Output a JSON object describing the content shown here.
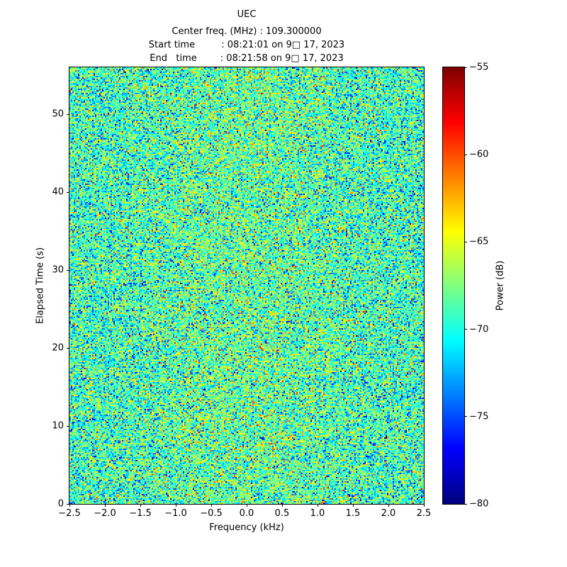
{
  "header": {
    "title": "UEC",
    "center_freq_line": "Center freq. (MHz) : 109.300000",
    "start_time_line": "Start time         : 08:21:01 on 9□ 17, 2023",
    "end_time_line": "End   time        : 08:21:58 on 9□ 17, 2023"
  },
  "chart_data": {
    "type": "heatmap",
    "title": "UEC",
    "annotations": [
      "Center freq. (MHz) : 109.300000",
      "Start time : 08:21:01 on 9□ 17, 2023",
      "End time : 08:21:58 on 9□ 17, 2023"
    ],
    "xlabel": "Frequency (kHz)",
    "ylabel": "Elapsed Time (s)",
    "xlim": [
      -2.5,
      2.5
    ],
    "ylim": [
      0,
      56
    ],
    "xtick_values": [
      -2.5,
      -2.0,
      -1.5,
      -1.0,
      -0.5,
      0.0,
      0.5,
      1.0,
      1.5,
      2.0,
      2.5
    ],
    "xtick_labels": [
      "−2.5",
      "−2.0",
      "−1.5",
      "−1.0",
      "−0.5",
      "0.0",
      "0.5",
      "1.0",
      "1.5",
      "2.0",
      "2.5"
    ],
    "ytick_values": [
      0,
      10,
      20,
      30,
      40,
      50
    ],
    "ytick_labels": [
      "0",
      "10",
      "20",
      "30",
      "40",
      "50"
    ],
    "grid": false,
    "colorbar": {
      "label": "Power (dB)",
      "vmin": -80,
      "vmax": -55,
      "tick_values": [
        -55,
        -60,
        -65,
        -70,
        -75,
        -80
      ],
      "tick_labels": [
        "−55",
        "−60",
        "−65",
        "−70",
        "−75",
        "−80"
      ],
      "colormap": "jet",
      "colormap_stops_bottom_to_top": [
        "#00007f",
        "#0000ff",
        "#00ffff",
        "#ffff00",
        "#ff0000",
        "#7f0000"
      ]
    },
    "data": {
      "description": "Spectrogram waterfall of wideband random noise over 5 kHz span and ~56 s; no discrete carrier visible; power speckle fluctuating around −69 dB (cyan/green) with a very slight brightening near 0 kHz; extremes from ~−80 dB (dark blue) to rare ~−58 dB (orange/red) pixels",
      "grid": {
        "cols": 250,
        "rows": 308
      },
      "noise_mean_db": -69.2,
      "noise_std_db": 3.4,
      "center_bump_db": 1.0,
      "seed": 1234
    }
  }
}
